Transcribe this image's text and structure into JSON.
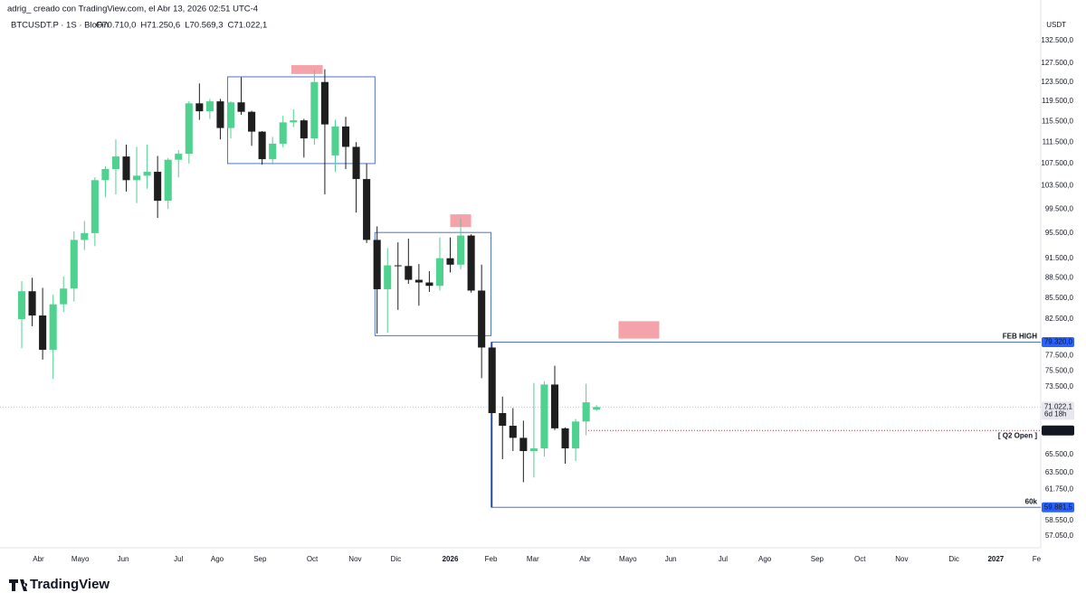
{
  "header": {
    "credit": "adrig_ creado con TradingView.com, el Abr 13, 2026 02:51 UTC-4",
    "symbol": "BTCUSDT.P · 1S · BloFin",
    "ohlc": [
      "O70.710,0",
      "H71.250,6",
      "L70.569,3",
      "C71.022,1"
    ]
  },
  "chart_data": {
    "type": "candlestick",
    "y_axis_label": "USDT",
    "log_scale": true,
    "ylim": [
      55900,
      142000
    ],
    "yticks": [
      {
        "value": 132500,
        "label": "132.500,0"
      },
      {
        "value": 127500,
        "label": "127.500,0"
      },
      {
        "value": 123500,
        "label": "123.500,0"
      },
      {
        "value": 119500,
        "label": "119.500,0"
      },
      {
        "value": 115500,
        "label": "115.500,0"
      },
      {
        "value": 111500,
        "label": "111.500,0"
      },
      {
        "value": 107500,
        "label": "107.500,0"
      },
      {
        "value": 103500,
        "label": "103.500,0"
      },
      {
        "value": 99500,
        "label": "99.500,0"
      },
      {
        "value": 95500,
        "label": "95.500,0"
      },
      {
        "value": 91500,
        "label": "91.500,0"
      },
      {
        "value": 88500,
        "label": "88.500,0"
      },
      {
        "value": 85500,
        "label": "85.500,0"
      },
      {
        "value": 82500,
        "label": "82.500,0"
      },
      {
        "value": 77500,
        "label": "77.500,0"
      },
      {
        "value": 75500,
        "label": "75.500,0"
      },
      {
        "value": 73500,
        "label": "73.500,0"
      },
      {
        "value": 65500,
        "label": "65.500,0"
      },
      {
        "value": 63500,
        "label": "63.500,0"
      },
      {
        "value": 61750,
        "label": "61.750,0"
      },
      {
        "value": 58550,
        "label": "58.550,0"
      },
      {
        "value": 57050,
        "label": "57.050,0"
      }
    ],
    "xlim": [
      -2.08,
      97.5
    ],
    "xticks": [
      {
        "value": 1.6,
        "label": "Abr"
      },
      {
        "value": 5.6,
        "label": "Mayo"
      },
      {
        "value": 9.7,
        "label": "Jun"
      },
      {
        "value": 15.0,
        "label": "Jul"
      },
      {
        "value": 18.7,
        "label": "Ago"
      },
      {
        "value": 22.8,
        "label": "Sep"
      },
      {
        "value": 27.8,
        "label": "Oct"
      },
      {
        "value": 31.9,
        "label": "Nov"
      },
      {
        "value": 35.8,
        "label": "Dic"
      },
      {
        "value": 41.0,
        "label": "2026"
      },
      {
        "value": 44.9,
        "label": "Feb"
      },
      {
        "value": 48.9,
        "label": "Mar"
      },
      {
        "value": 53.9,
        "label": "Abr"
      },
      {
        "value": 58.0,
        "label": "Mayo"
      },
      {
        "value": 62.1,
        "label": "Jun"
      },
      {
        "value": 67.1,
        "label": "Jul"
      },
      {
        "value": 71.1,
        "label": "Ago"
      },
      {
        "value": 76.1,
        "label": "Sep"
      },
      {
        "value": 80.2,
        "label": "Oct"
      },
      {
        "value": 84.2,
        "label": "Nov"
      },
      {
        "value": 89.2,
        "label": "Dic"
      },
      {
        "value": 93.2,
        "label": "2027"
      },
      {
        "value": 97.1,
        "label": "Fe"
      }
    ],
    "open": [
      82500,
      86500,
      83000,
      78300,
      84600,
      86900,
      94400,
      95500,
      104500,
      106500,
      108800,
      104500,
      105300,
      106000,
      100900,
      108200,
      109300,
      119100,
      117500,
      119500,
      114200,
      119300,
      117400,
      113500,
      108300,
      111200,
      115300,
      115700,
      112200,
      123500,
      109000,
      114500,
      110600,
      104700,
      94400,
      86800,
      90400,
      90300,
      88200,
      87800,
      87300,
      91500,
      90500,
      95100,
      86600,
      78600,
      70300,
      68800,
      67400,
      65900,
      66200,
      73800,
      68500,
      66200,
      69300,
      70710
    ],
    "high": [
      88000,
      88500,
      87000,
      86000,
      88700,
      95800,
      97500,
      105000,
      107000,
      112000,
      111000,
      110600,
      111000,
      108900,
      108500,
      110000,
      119500,
      123200,
      120000,
      120000,
      119500,
      124500,
      117600,
      113600,
      112500,
      116600,
      117900,
      116000,
      126000,
      126200,
      115800,
      116400,
      111500,
      107500,
      96600,
      93100,
      94000,
      94600,
      90600,
      89500,
      94800,
      94800,
      97900,
      95300,
      90500,
      79300,
      72300,
      70900,
      69400,
      74000,
      74200,
      76200,
      68600,
      69600,
      73900,
      71250.6
    ],
    "low": [
      78500,
      81500,
      77000,
      74500,
      83500,
      85000,
      92800,
      93400,
      101500,
      102000,
      102500,
      100500,
      103000,
      98000,
      99500,
      105000,
      107500,
      115800,
      116000,
      112000,
      112200,
      116800,
      110800,
      107300,
      107300,
      110500,
      114400,
      108600,
      111000,
      102000,
      106000,
      106500,
      98900,
      93900,
      80500,
      80600,
      83800,
      87600,
      84400,
      86400,
      86600,
      89300,
      89800,
      86300,
      74600,
      59900,
      65000,
      65900,
      62500,
      63000,
      65300,
      68300,
      64500,
      64800,
      67700,
      70569.3
    ],
    "close": [
      86500,
      83000,
      78300,
      84600,
      86900,
      94400,
      95500,
      104500,
      106500,
      108800,
      104500,
      105300,
      106000,
      100900,
      108200,
      109300,
      119100,
      117500,
      119500,
      114200,
      119300,
      117400,
      113500,
      108300,
      111200,
      115300,
      115700,
      112200,
      123500,
      114900,
      114500,
      110600,
      104700,
      94400,
      86800,
      90400,
      90300,
      88200,
      87800,
      87300,
      91500,
      90500,
      95100,
      86600,
      78600,
      70300,
      68800,
      67400,
      65900,
      66200,
      73800,
      68500,
      66200,
      69300,
      71600,
      71022.1
    ],
    "up_color": "#4fd18f",
    "down_color": "#1e1e1e",
    "zones": [
      {
        "x0": 19.7,
        "x1": 33.8,
        "y0": 124600,
        "y1": 107500,
        "color": "#4f74c4",
        "filled": false
      },
      {
        "x0": 33.8,
        "x1": 44.9,
        "y0": 95600,
        "y1": 80200,
        "color": "#4f74c4",
        "filled": false
      },
      {
        "x0": 25.8,
        "x1": 28.8,
        "y0": 127100,
        "y1": 125200,
        "color": "#f5a3aa",
        "filled": true
      },
      {
        "x0": 41.0,
        "x1": 43.0,
        "y0": 98600,
        "y1": 96500,
        "color": "#f5a3aa",
        "filled": true
      },
      {
        "x0": 57.1,
        "x1": 61.0,
        "y0": 82200,
        "y1": 79800,
        "color": "#f5a3aa",
        "filled": true
      }
    ],
    "levels": [
      {
        "name": "FEB HIGH",
        "value": 79320,
        "value_label": "79.320,0",
        "x_start": 44.9,
        "color": "#2962ff",
        "style": "solid"
      },
      {
        "name": "60k",
        "value": 59881.5,
        "value_label": "59.881,5",
        "x_start": 44.9,
        "color": "#2962ff",
        "style": "solid"
      },
      {
        "name": "[ Q2 Open ]",
        "value": 68247,
        "value_label": "68.247,0",
        "x_start": 54.2,
        "color": "#c2303c",
        "style": "dotted"
      }
    ],
    "last_price": {
      "value": 71022.1,
      "label": "71.022,1",
      "countdown": "6d 18h"
    }
  },
  "footer": {
    "brand": "TradingView"
  }
}
